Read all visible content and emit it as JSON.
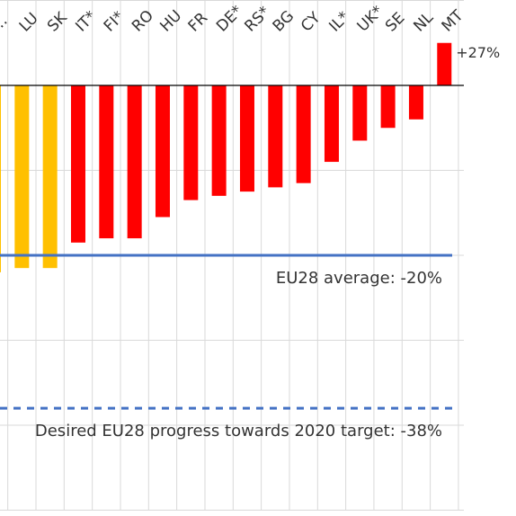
{
  "chart_data": {
    "type": "bar",
    "categories": [
      "…",
      "LU",
      "SK",
      "IT*",
      "FI*",
      "RO",
      "HU",
      "FR",
      "DE*",
      "RS*",
      "BG",
      "CY",
      "IL*",
      "UK*",
      "SE",
      "NL",
      "MT"
    ],
    "values": [
      -22,
      -21.5,
      -21.5,
      -18.5,
      -18,
      -18,
      -15.5,
      -13.5,
      -13,
      -12.5,
      -12,
      -11.5,
      -9,
      -6.5,
      -5,
      -4,
      5
    ],
    "bar_colors": [
      "#ffc000",
      "#ffc000",
      "#ffc000",
      "#ff0000",
      "#ff0000",
      "#ff0000",
      "#ff0000",
      "#ff0000",
      "#ff0000",
      "#ff0000",
      "#ff0000",
      "#ff0000",
      "#ff0000",
      "#ff0000",
      "#ff0000",
      "#ff0000",
      "#ff0000"
    ],
    "ylim": [
      -50,
      10
    ],
    "grid": true,
    "data_labels": [
      {
        "category": "MT",
        "text": "+27%"
      }
    ],
    "reference_lines": [
      {
        "value": -20,
        "label": "EU28 average: -20%",
        "style": "solid",
        "color": "#4472c4"
      },
      {
        "value": -38,
        "label": "Desired EU28 progress towards 2020 target: -38%",
        "style": "dashed",
        "color": "#4472c4"
      }
    ]
  }
}
